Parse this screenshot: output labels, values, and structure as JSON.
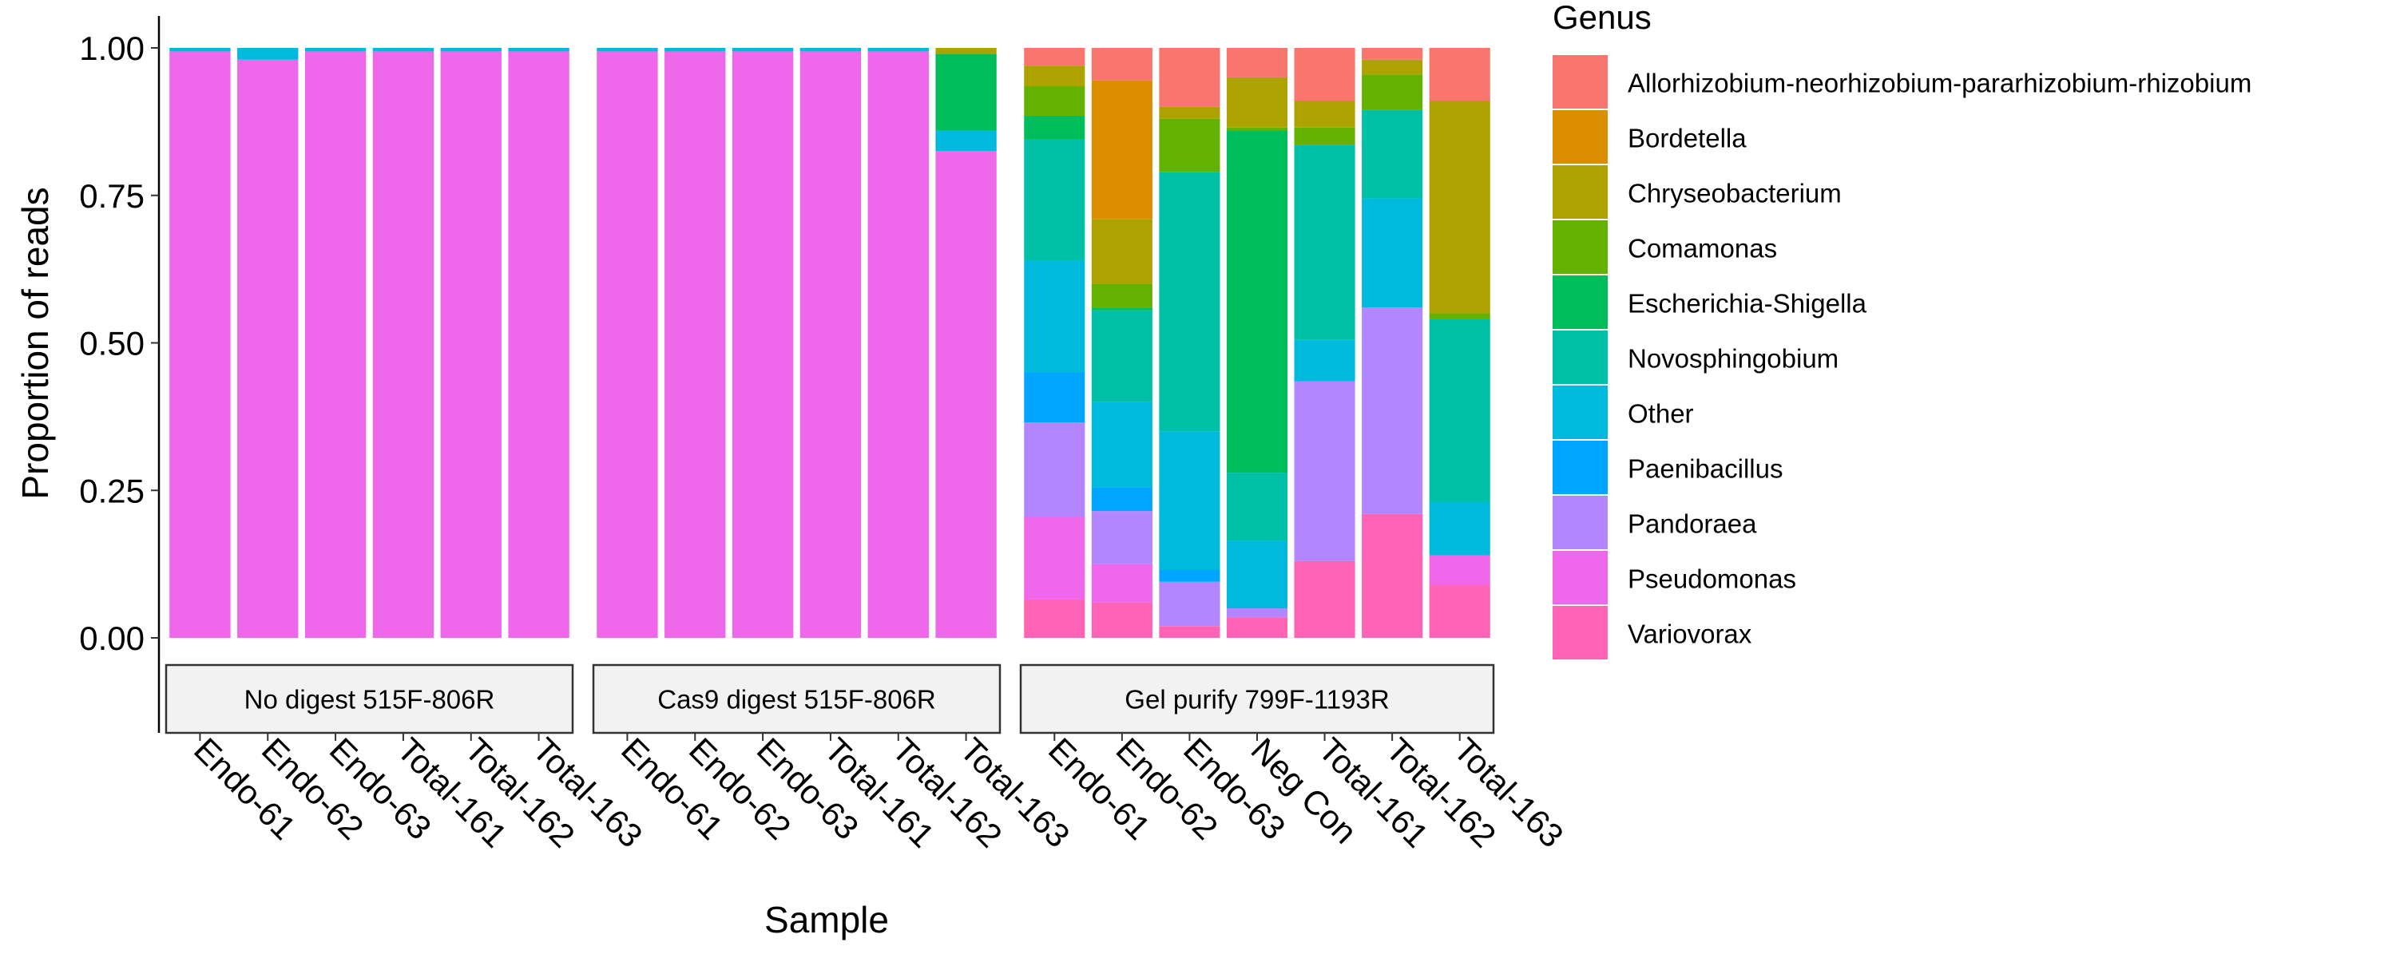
{
  "chart_data": {
    "type": "bar",
    "stacked": true,
    "xlabel": "Sample",
    "ylabel": "Proportion of reads",
    "ylim": [
      0,
      1
    ],
    "y_ticks": [
      "0.00",
      "0.25",
      "0.50",
      "0.75",
      "1.00"
    ],
    "grid": false,
    "legend": {
      "title": "Genus",
      "placement": "right",
      "entries": [
        {
          "name": "Allorhizobium-neorhizobium-pararhizobium-rhizobium",
          "color": "#F8766D"
        },
        {
          "name": "Bordetella",
          "color": "#DB8E00"
        },
        {
          "name": "Chryseobacterium",
          "color": "#AEA200"
        },
        {
          "name": "Comamonas",
          "color": "#64B200"
        },
        {
          "name": "Escherichia-Shigella",
          "color": "#00BD5C"
        },
        {
          "name": "Novosphingobium",
          "color": "#00C1A7"
        },
        {
          "name": "Other",
          "color": "#00BADE"
        },
        {
          "name": "Paenibacillus",
          "color": "#00A6FF"
        },
        {
          "name": "Pandoraea",
          "color": "#B385FF"
        },
        {
          "name": "Pseudomonas",
          "color": "#EF67EB"
        },
        {
          "name": "Variovorax",
          "color": "#FF63B6"
        }
      ]
    },
    "panels": [
      {
        "strip": "No digest 515F-806R",
        "bars": [
          {
            "sample": "Endo-61",
            "values": {
              "Pseudomonas": 0.994,
              "Other": 0.006
            }
          },
          {
            "sample": "Endo-62",
            "values": {
              "Pseudomonas": 0.98,
              "Other": 0.02
            }
          },
          {
            "sample": "Endo-63",
            "values": {
              "Pseudomonas": 0.994,
              "Other": 0.006
            }
          },
          {
            "sample": "Total-161",
            "values": {
              "Pseudomonas": 0.994,
              "Other": 0.006
            }
          },
          {
            "sample": "Total-162",
            "values": {
              "Pseudomonas": 0.994,
              "Other": 0.006
            }
          },
          {
            "sample": "Total-163",
            "values": {
              "Pseudomonas": 0.994,
              "Other": 0.006
            }
          }
        ]
      },
      {
        "strip": "Cas9 digest 515F-806R",
        "bars": [
          {
            "sample": "Endo-61",
            "values": {
              "Pseudomonas": 0.994,
              "Other": 0.006
            }
          },
          {
            "sample": "Endo-62",
            "values": {
              "Pseudomonas": 0.994,
              "Other": 0.006
            }
          },
          {
            "sample": "Endo-63",
            "values": {
              "Pseudomonas": 0.994,
              "Other": 0.006
            }
          },
          {
            "sample": "Total-161",
            "values": {
              "Pseudomonas": 0.994,
              "Other": 0.006
            }
          },
          {
            "sample": "Total-162",
            "values": {
              "Pseudomonas": 0.994,
              "Other": 0.006
            }
          },
          {
            "sample": "Total-163",
            "values": {
              "Pseudomonas": 0.825,
              "Other": 0.035,
              "Escherichia-Shigella": 0.13,
              "Chryseobacterium": 0.01
            }
          }
        ]
      },
      {
        "strip": "Gel purify 799F-1193R",
        "bars": [
          {
            "sample": "Endo-61",
            "values": {
              "Variovorax": 0.065,
              "Pseudomonas": 0.14,
              "Pandoraea": 0.16,
              "Paenibacillus": 0.085,
              "Other": 0.19,
              "Novosphingobium": 0.205,
              "Escherichia-Shigella": 0.04,
              "Comamonas": 0.05,
              "Chryseobacterium": 0.035,
              "Allorhizobium-neorhizobium-pararhizobium-rhizobium": 0.03
            }
          },
          {
            "sample": "Endo-62",
            "values": {
              "Variovorax": 0.06,
              "Pseudomonas": 0.065,
              "Pandoraea": 0.09,
              "Paenibacillus": 0.04,
              "Other": 0.145,
              "Novosphingobium": 0.155,
              "Escherichia-Shigella": 0.005,
              "Comamonas": 0.04,
              "Chryseobacterium": 0.11,
              "Bordetella": 0.235,
              "Allorhizobium-neorhizobium-pararhizobium-rhizobium": 0.055
            }
          },
          {
            "sample": "Endo-63",
            "values": {
              "Variovorax": 0.02,
              "Pandoraea": 0.075,
              "Paenibacillus": 0.02,
              "Other": 0.235,
              "Novosphingobium": 0.44,
              "Comamonas": 0.09,
              "Chryseobacterium": 0.02,
              "Allorhizobium-neorhizobium-pararhizobium-rhizobium": 0.1
            }
          },
          {
            "sample": "Neg Con",
            "values": {
              "Variovorax": 0.035,
              "Pandoraea": 0.015,
              "Other": 0.115,
              "Novosphingobium": 0.115,
              "Escherichia-Shigella": 0.58,
              "Comamonas": 0.005,
              "Chryseobacterium": 0.085,
              "Allorhizobium-neorhizobium-pararhizobium-rhizobium": 0.05
            }
          },
          {
            "sample": "Total-161",
            "values": {
              "Variovorax": 0.13,
              "Pandoraea": 0.305,
              "Other": 0.07,
              "Novosphingobium": 0.33,
              "Comamonas": 0.03,
              "Chryseobacterium": 0.045,
              "Allorhizobium-neorhizobium-pararhizobium-rhizobium": 0.09
            }
          },
          {
            "sample": "Total-162",
            "values": {
              "Variovorax": 0.21,
              "Pandoraea": 0.35,
              "Other": 0.185,
              "Novosphingobium": 0.15,
              "Comamonas": 0.06,
              "Chryseobacterium": 0.025,
              "Allorhizobium-neorhizobium-pararhizobium-rhizobium": 0.02
            }
          },
          {
            "sample": "Total-163",
            "values": {
              "Variovorax": 0.09,
              "Pseudomonas": 0.05,
              "Other": 0.09,
              "Novosphingobium": 0.31,
              "Comamonas": 0.01,
              "Chryseobacterium": 0.36,
              "Allorhizobium-neorhizobium-pararhizobium-rhizobium": 0.09
            }
          }
        ]
      }
    ]
  }
}
